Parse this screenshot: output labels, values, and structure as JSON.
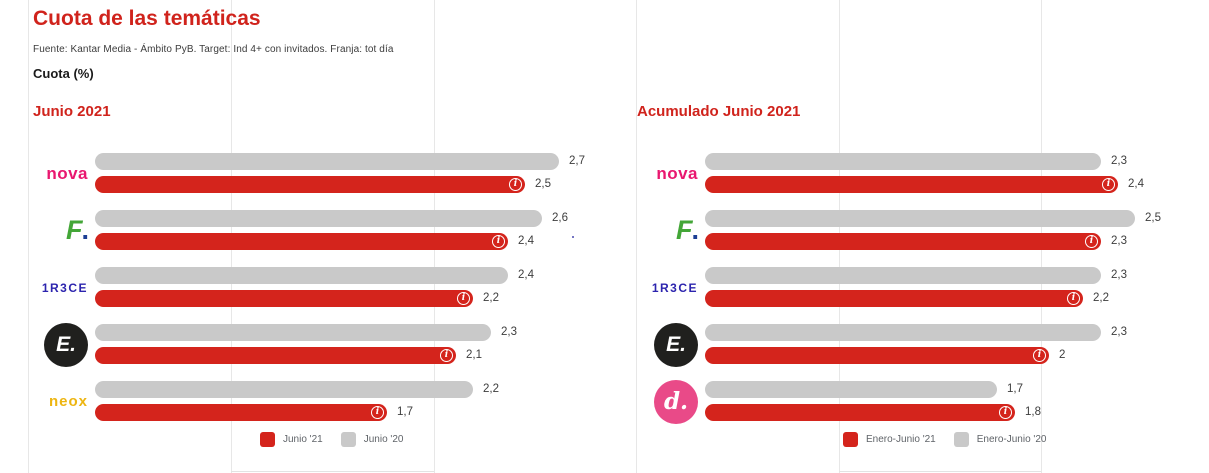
{
  "page": {
    "title": "Cuota de las temáticas",
    "source": "Fuente: Kantar Media - Ámbito PyB. Target: Ind 4+ con invitados. Franja: tot día",
    "unit_label": "Cuota (%)"
  },
  "colors": {
    "accent_red": "#d0231c",
    "bar_current": "#d4241c",
    "bar_previous": "#c9c9c9",
    "gridline": "#e7e7e7"
  },
  "icons": {
    "info_glyph": "i"
  },
  "chart_data": [
    {
      "type": "bar",
      "orientation": "horizontal",
      "title": "Junio 2021",
      "value_axis": "Cuota (%)",
      "xlim": [
        0,
        2.8
      ],
      "grid": "vertical-lines",
      "legend_position": "bottom",
      "categories": [
        "Nova",
        "FDF",
        "Trece",
        "Energy",
        "Neox"
      ],
      "channels": [
        {
          "id": "nova",
          "type": "text",
          "text": "nova",
          "color": "#e9176f",
          "class": "logo-nova"
        },
        {
          "id": "fdf",
          "type": "fdf",
          "text": "F",
          "dot": ".",
          "color": "#43a637",
          "dot_color": "#1c3e94"
        },
        {
          "id": "trece",
          "type": "text",
          "text": "1R3CE",
          "color": "#2c24ae",
          "class": "logo-trece"
        },
        {
          "id": "energy",
          "type": "circle",
          "text": "E.",
          "bg": "#20201e",
          "fg": "#ffffff",
          "class": "energy"
        },
        {
          "id": "neox",
          "type": "text",
          "text": "neox",
          "color": "#edb511",
          "class": "logo-neox"
        }
      ],
      "series": [
        {
          "name": "Junio '21",
          "color": "#d4241c",
          "values": [
            2.5,
            2.4,
            2.2,
            2.1,
            1.7
          ],
          "display": [
            "2,5",
            "2,4",
            "2,2",
            "2,1",
            "1,7"
          ]
        },
        {
          "name": "Junio '20",
          "color": "#c9c9c9",
          "values": [
            2.7,
            2.6,
            2.4,
            2.3,
            2.2
          ],
          "display": [
            "2,7",
            "2,6",
            "2,4",
            "2,3",
            "2,2"
          ]
        }
      ]
    },
    {
      "type": "bar",
      "orientation": "horizontal",
      "title": "Acumulado Junio 2021",
      "value_axis": "Cuota (%)",
      "xlim": [
        0,
        2.8
      ],
      "grid": "vertical-lines",
      "legend_position": "bottom",
      "categories": [
        "Nova",
        "FDF",
        "Trece",
        "Energy",
        "Divinity"
      ],
      "channels": [
        {
          "id": "nova",
          "type": "text",
          "text": "nova",
          "color": "#e9176f",
          "class": "logo-nova"
        },
        {
          "id": "fdf",
          "type": "fdf",
          "text": "F",
          "dot": ".",
          "color": "#43a637",
          "dot_color": "#1c3e94"
        },
        {
          "id": "trece",
          "type": "text",
          "text": "1R3CE",
          "color": "#2c24ae",
          "class": "logo-trece"
        },
        {
          "id": "energy",
          "type": "circle",
          "text": "E.",
          "bg": "#20201e",
          "fg": "#ffffff",
          "class": "energy"
        },
        {
          "id": "divinity",
          "type": "circle",
          "text": "d.",
          "bg": "#e94a88",
          "fg": "#ffffff",
          "class": "divinity"
        }
      ],
      "series": [
        {
          "name": "Enero-Junio '21",
          "color": "#d4241c",
          "values": [
            2.4,
            2.3,
            2.2,
            2.0,
            1.8
          ],
          "display": [
            "2,4",
            "2,3",
            "2,2",
            "2",
            "1,8"
          ]
        },
        {
          "name": "Enero-Junio '20",
          "color": "#c9c9c9",
          "values": [
            2.3,
            2.5,
            2.3,
            2.3,
            1.7
          ],
          "display": [
            "2,3",
            "2,5",
            "2,3",
            "2,3",
            "1,7"
          ]
        }
      ]
    }
  ]
}
